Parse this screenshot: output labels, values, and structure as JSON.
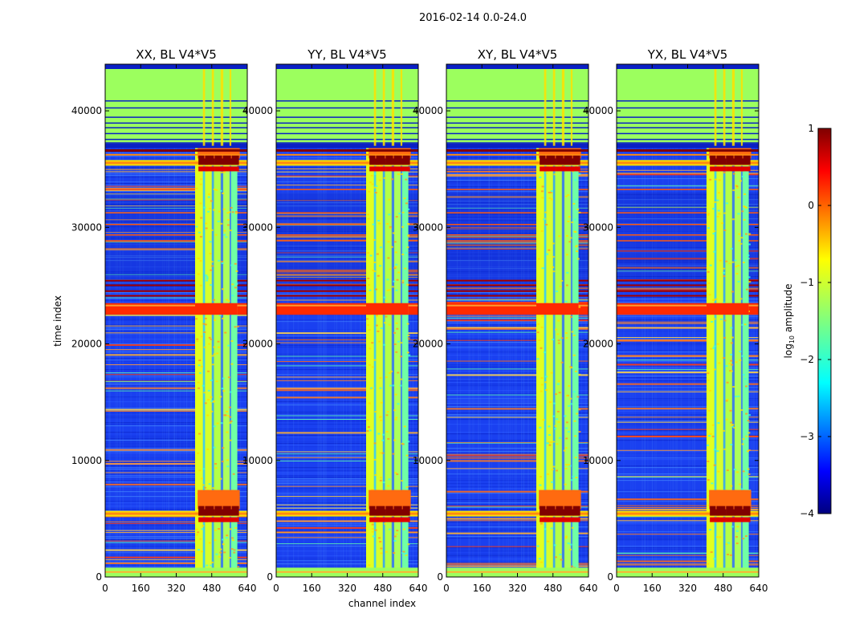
{
  "chart_data": {
    "type": "heatmap",
    "suptitle": "2016-02-14 0.0-24.0",
    "xlabel": "channel index",
    "ylabel": "time index",
    "xlim": [
      0,
      640
    ],
    "ylim": [
      0,
      44000
    ],
    "x_ticks": [
      0,
      160,
      320,
      480,
      640
    ],
    "y_ticks": [
      0,
      10000,
      20000,
      30000,
      40000
    ],
    "colorbar": {
      "label_base": "log",
      "label_sub": "10",
      "label_rest": " amplitude",
      "range": [
        -4,
        1
      ],
      "ticks": [
        "−4",
        "−3",
        "−2",
        "−1",
        "0",
        "1"
      ],
      "colormap": "jet"
    },
    "panels": [
      {
        "title": "XX, BL V4*V5",
        "bright_channel_range": [
          405,
          595
        ],
        "event_times": [
          5400,
          35500
        ]
      },
      {
        "title": "YY, BL V4*V5",
        "bright_channel_range": [
          405,
          595
        ],
        "event_times": [
          5400,
          35500
        ]
      },
      {
        "title": "XY, BL V4*V5",
        "bright_channel_range": [
          405,
          595
        ],
        "event_times": [
          5400,
          35500
        ]
      },
      {
        "title": "YX, BL V4*V5",
        "bright_channel_range": [
          405,
          595
        ],
        "event_times": [
          5400,
          35500
        ]
      }
    ],
    "flagged_time_range": [
      37000,
      44000
    ],
    "hot_time_band": [
      22500,
      23500
    ],
    "colors": {
      "background": "#1a40f0",
      "flagged": "#9cff5e",
      "hot": "#ff2a00",
      "peak": "#800000"
    }
  }
}
